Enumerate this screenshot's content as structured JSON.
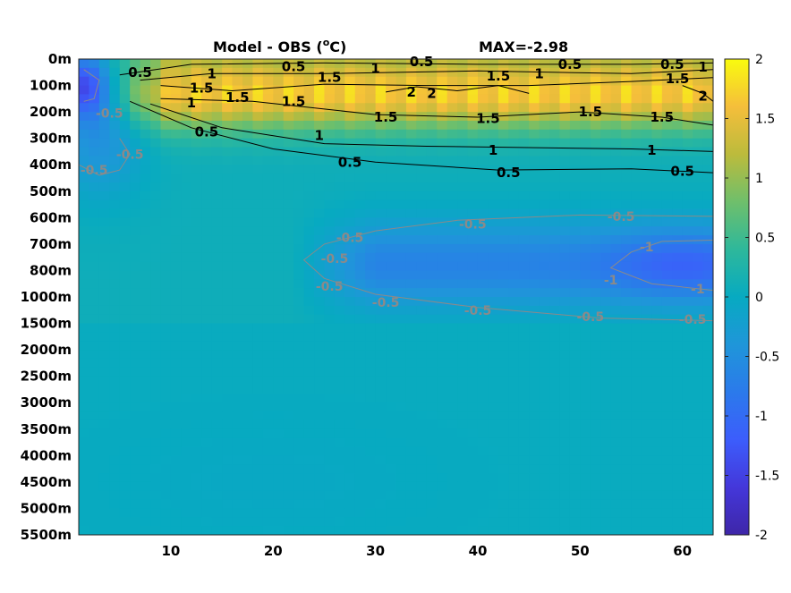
{
  "chart_data": {
    "type": "heatmap",
    "title": "Model - OBS (",
    "title_sup": "o",
    "title_unit": "C)",
    "max_label": "MAX=-2.98",
    "xlim": [
      1,
      63
    ],
    "x_ticks": [
      10,
      20,
      30,
      40,
      50,
      60
    ],
    "y_tick_labels": [
      "0m",
      "100m",
      "200m",
      "300m",
      "400m",
      "500m",
      "600m",
      "700m",
      "800m",
      "1000m",
      "1500m",
      "2000m",
      "2500m",
      "3000m",
      "3500m",
      "4000m",
      "4500m",
      "5000m",
      "5500m"
    ],
    "clim": [
      -2,
      2
    ],
    "colorbar_ticks": [
      "2",
      "1.5",
      "1",
      "0.5",
      "0",
      "-0.5",
      "-1",
      "-1.5",
      "-2"
    ],
    "colormap": "parula",
    "contour_levels_positive": [
      0.5,
      1,
      1.5,
      2
    ],
    "contour_levels_negative": [
      -0.5,
      -1
    ],
    "contour_color_positive": "#000000",
    "contour_color_negative": "#8a8a8a",
    "contour_labels": [
      {
        "text": "0.5",
        "x": 7,
        "y": 0.5,
        "sign": "pos"
      },
      {
        "text": "1",
        "x": 14,
        "y": 0.55,
        "sign": "pos"
      },
      {
        "text": "1.5",
        "x": 13,
        "y": 1.1,
        "sign": "pos"
      },
      {
        "text": "1.5",
        "x": 16.5,
        "y": 1.45,
        "sign": "pos"
      },
      {
        "text": "1",
        "x": 12,
        "y": 1.65,
        "sign": "pos"
      },
      {
        "text": "0.5",
        "x": 13.5,
        "y": 2.75,
        "sign": "pos"
      },
      {
        "text": "0.5",
        "x": 22,
        "y": 0.28,
        "sign": "pos"
      },
      {
        "text": "1.5",
        "x": 25.5,
        "y": 0.7,
        "sign": "pos"
      },
      {
        "text": "1.5",
        "x": 22,
        "y": 1.6,
        "sign": "pos"
      },
      {
        "text": "1",
        "x": 24.5,
        "y": 2.9,
        "sign": "pos"
      },
      {
        "text": "0.5",
        "x": 27.5,
        "y": 3.9,
        "sign": "pos"
      },
      {
        "text": "1",
        "x": 30,
        "y": 0.35,
        "sign": "pos"
      },
      {
        "text": "0.5",
        "x": 34.5,
        "y": 0.1,
        "sign": "pos"
      },
      {
        "text": "2",
        "x": 33.5,
        "y": 1.25,
        "sign": "pos"
      },
      {
        "text": "2",
        "x": 35.5,
        "y": 1.3,
        "sign": "pos"
      },
      {
        "text": "1.5",
        "x": 31,
        "y": 2.2,
        "sign": "pos"
      },
      {
        "text": "1.5",
        "x": 42,
        "y": 0.65,
        "sign": "pos"
      },
      {
        "text": "1.5",
        "x": 41,
        "y": 2.25,
        "sign": "pos"
      },
      {
        "text": "1",
        "x": 41.5,
        "y": 3.45,
        "sign": "pos"
      },
      {
        "text": "0.5",
        "x": 43,
        "y": 4.3,
        "sign": "pos"
      },
      {
        "text": "1",
        "x": 46,
        "y": 0.55,
        "sign": "pos"
      },
      {
        "text": "0.5",
        "x": 49,
        "y": 0.2,
        "sign": "pos"
      },
      {
        "text": "1.5",
        "x": 51,
        "y": 2.0,
        "sign": "pos"
      },
      {
        "text": "1",
        "x": 57,
        "y": 3.45,
        "sign": "pos"
      },
      {
        "text": "1.5",
        "x": 58,
        "y": 2.2,
        "sign": "pos"
      },
      {
        "text": "0.5",
        "x": 59,
        "y": 0.2,
        "sign": "pos"
      },
      {
        "text": "1",
        "x": 62,
        "y": 0.3,
        "sign": "pos"
      },
      {
        "text": "1.5",
        "x": 59.5,
        "y": 0.75,
        "sign": "pos"
      },
      {
        "text": "2",
        "x": 62,
        "y": 1.4,
        "sign": "pos"
      },
      {
        "text": "0.5",
        "x": 60,
        "y": 4.25,
        "sign": "pos"
      },
      {
        "text": "-0.5",
        "x": 4,
        "y": 2.05,
        "sign": "neg"
      },
      {
        "text": "-0.5",
        "x": 6,
        "y": 3.6,
        "sign": "neg"
      },
      {
        "text": "-0.5",
        "x": 2.5,
        "y": 4.2,
        "sign": "neg"
      },
      {
        "text": "-0.5",
        "x": 27.5,
        "y": 6.75,
        "sign": "neg"
      },
      {
        "text": "-0.5",
        "x": 26,
        "y": 7.55,
        "sign": "neg"
      },
      {
        "text": "-0.5",
        "x": 25.5,
        "y": 8.6,
        "sign": "neg"
      },
      {
        "text": "-0.5",
        "x": 39.5,
        "y": 6.25,
        "sign": "neg"
      },
      {
        "text": "-0.5",
        "x": 54,
        "y": 5.95,
        "sign": "neg"
      },
      {
        "text": "-0.5",
        "x": 31,
        "y": 9.2,
        "sign": "neg"
      },
      {
        "text": "-0.5",
        "x": 40,
        "y": 9.5,
        "sign": "neg"
      },
      {
        "text": "-0.5",
        "x": 51,
        "y": 9.75,
        "sign": "neg"
      },
      {
        "text": "-0.5",
        "x": 61,
        "y": 9.85,
        "sign": "neg"
      },
      {
        "text": "-1",
        "x": 56.5,
        "y": 7.1,
        "sign": "neg"
      },
      {
        "text": "-1",
        "x": 53,
        "y": 8.35,
        "sign": "neg"
      },
      {
        "text": "-1",
        "x": 61.5,
        "y": 8.7,
        "sign": "neg"
      }
    ]
  }
}
